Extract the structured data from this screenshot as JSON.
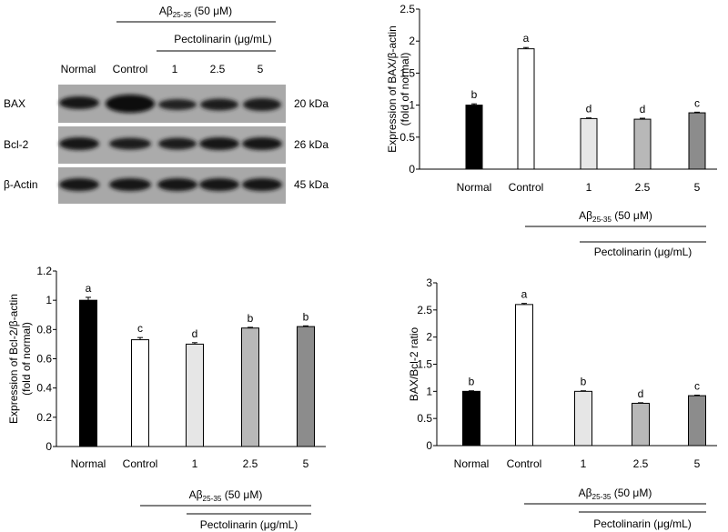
{
  "blot": {
    "treatment_header": "Aβ25-35 (50 μM)",
    "treatment_parts": [
      "Aβ",
      "25-35",
      " (50 μM)"
    ],
    "drug_header": "Pectolinarin (μg/mL)",
    "lanes": [
      "Normal",
      "Control",
      "1",
      "2.5",
      "5"
    ],
    "rows": [
      {
        "protein": "BAX",
        "size": "20 kDa"
      },
      {
        "protein": "Bcl-2",
        "size": "26 kDa"
      },
      {
        "protein": "β-Actin",
        "size": "45 kDa"
      }
    ]
  },
  "colors": [
    "#000000",
    "#ffffff",
    "#e6e6e6",
    "#b8b8b8",
    "#8c8c8c"
  ],
  "chart_data": [
    {
      "type": "bar",
      "categories": [
        "Normal",
        "Control",
        "1",
        "2.5",
        "5"
      ],
      "values": [
        1.0,
        1.88,
        0.79,
        0.78,
        0.88
      ],
      "errors": [
        0.02,
        0.02,
        0.01,
        0.015,
        0.01
      ],
      "letters": [
        "b",
        "a",
        "d",
        "d",
        "c"
      ],
      "ylabel_lines": [
        "Expression of BAX/β-actin",
        "(fold of normal)"
      ],
      "ylim": [
        0,
        2.5
      ],
      "yticks": [
        "0",
        "0.5",
        "1",
        "1.5",
        "2",
        "2.5"
      ],
      "group_label_parts": [
        "Aβ",
        "25-35",
        " (50 μM)"
      ],
      "subgroup_label": "Pectolinarin (μg/mL)"
    },
    {
      "type": "bar",
      "categories": [
        "Normal",
        "Control",
        "1",
        "2.5",
        "5"
      ],
      "values": [
        1.0,
        0.73,
        0.7,
        0.81,
        0.82
      ],
      "errors": [
        0.02,
        0.015,
        0.01,
        0.005,
        0.005
      ],
      "letters": [
        "a",
        "c",
        "d",
        "b",
        "b"
      ],
      "ylabel_lines": [
        "Expression of Bcl-2/β-actin",
        "(fold of normal)"
      ],
      "ylim": [
        0,
        1.2
      ],
      "yticks": [
        "0",
        "0.2",
        "0.4",
        "0.6",
        "0.8",
        "1",
        "1.2"
      ],
      "group_label_parts": [
        "Aβ",
        "25-35",
        " (50 μM)"
      ],
      "subgroup_label": "Pectolinarin (μg/mL)"
    },
    {
      "type": "bar",
      "categories": [
        "Normal",
        "Control",
        "1",
        "2.5",
        "5"
      ],
      "values": [
        1.0,
        2.6,
        1.0,
        0.78,
        0.92
      ],
      "errors": [
        0.01,
        0.02,
        0.01,
        0.01,
        0.01
      ],
      "letters": [
        "b",
        "a",
        "b",
        "d",
        "c"
      ],
      "ylabel_lines": [
        "BAX/Bcl-2 ratio"
      ],
      "ylim": [
        0,
        3
      ],
      "yticks": [
        "0",
        "0.5",
        "1",
        "1.5",
        "2",
        "2.5",
        "3"
      ],
      "group_label_parts": [
        "Aβ",
        "25-35",
        " (50 μM)"
      ],
      "subgroup_label": "Pectolinarin (μg/mL)"
    }
  ]
}
